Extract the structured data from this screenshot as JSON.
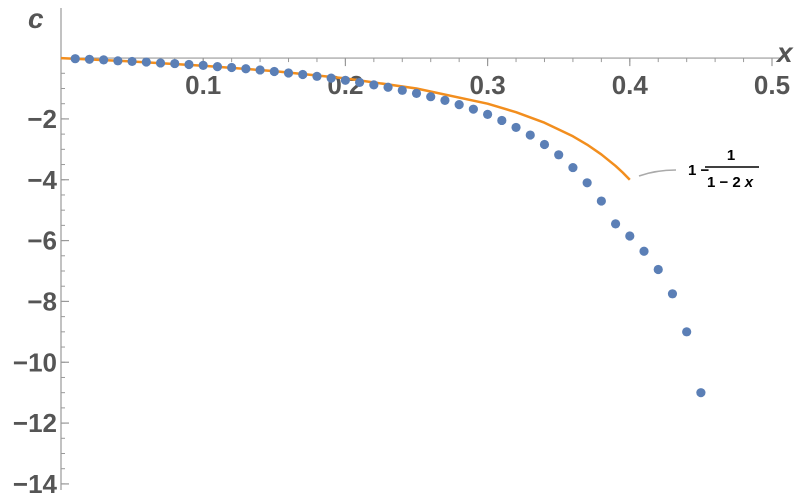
{
  "chart_data": {
    "type": "scatter",
    "xlabel": "x",
    "ylabel": "c",
    "xlim": [
      0,
      0.5
    ],
    "ylim": [
      -14.2,
      0.2
    ],
    "x_ticks": [
      0.1,
      0.2,
      0.3,
      0.4,
      0.5
    ],
    "x_tick_labels": [
      "0.1",
      "0.2",
      "0.3",
      "0.4",
      "0.5"
    ],
    "y_ticks": [
      -2,
      -4,
      -6,
      -8,
      -10,
      -12,
      -14
    ],
    "y_tick_labels": [
      "−2",
      "−4",
      "−6",
      "−8",
      "−10",
      "−12",
      "−14"
    ],
    "grid": false,
    "series": [
      {
        "kind": "points",
        "color": "#5b7fb6",
        "x": [
          0.01,
          0.02,
          0.03,
          0.04,
          0.05,
          0.06,
          0.07,
          0.08,
          0.09,
          0.1,
          0.11,
          0.12,
          0.13,
          0.14,
          0.15,
          0.16,
          0.17,
          0.18,
          0.19,
          0.2,
          0.21,
          0.22,
          0.23,
          0.24,
          0.25,
          0.26,
          0.27,
          0.28,
          0.29,
          0.3,
          0.31,
          0.32,
          0.33,
          0.34,
          0.35,
          0.36,
          0.37,
          0.38,
          0.39,
          0.4,
          0.41,
          0.42,
          0.43,
          0.44,
          0.45
        ],
        "y": [
          -0.02,
          -0.04,
          -0.06,
          -0.09,
          -0.11,
          -0.13,
          -0.16,
          -0.18,
          -0.21,
          -0.24,
          -0.28,
          -0.31,
          -0.35,
          -0.39,
          -0.44,
          -0.49,
          -0.54,
          -0.6,
          -0.66,
          -0.73,
          -0.8,
          -0.88,
          -0.96,
          -1.06,
          -1.16,
          -1.27,
          -1.39,
          -1.53,
          -1.68,
          -1.85,
          -2.05,
          -2.28,
          -2.53,
          -2.84,
          -3.18,
          -3.6,
          -4.1,
          -4.7,
          -5.45,
          -5.85,
          -6.35,
          -6.95,
          -7.75,
          -9.0,
          -11.0
        ]
      },
      {
        "kind": "curve",
        "name_parts": [
          "1 −",
          "1",
          "1 − 2",
          "x"
        ],
        "color": "#f28e1e",
        "x": [
          0,
          0.05,
          0.1,
          0.15,
          0.2,
          0.25,
          0.3,
          0.32,
          0.34,
          0.36,
          0.37,
          0.38,
          0.39,
          0.395,
          0.4
        ],
        "y": [
          0,
          -0.111,
          -0.25,
          -0.429,
          -0.667,
          -1.0,
          -1.5,
          -1.778,
          -2.125,
          -2.571,
          -2.846,
          -3.167,
          -3.545,
          -3.762,
          -4.0
        ]
      }
    ]
  }
}
